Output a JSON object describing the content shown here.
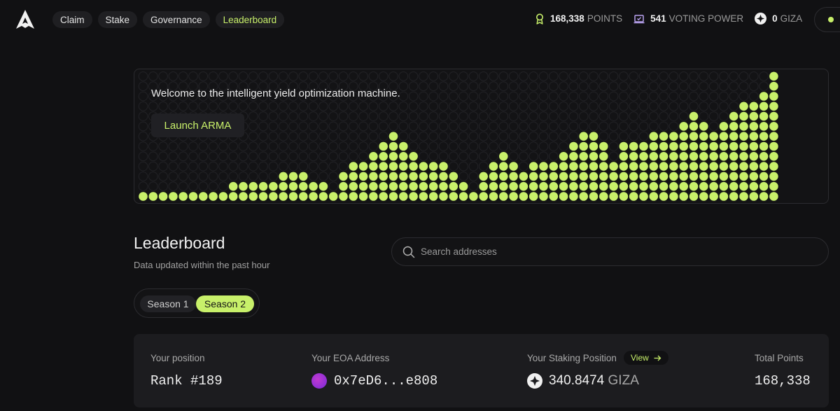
{
  "nav": {
    "items": [
      {
        "label": "Claim",
        "active": false
      },
      {
        "label": "Stake",
        "active": false
      },
      {
        "label": "Governance",
        "active": false
      },
      {
        "label": "Leaderboard",
        "active": true
      }
    ]
  },
  "stats": {
    "points_value": "168,338",
    "points_label": "POINTS",
    "voting_value": "541",
    "voting_label": "VOTING POWER",
    "giza_value": "0",
    "giza_label": "GIZA"
  },
  "hero": {
    "welcome": "Welcome to the intelligent yield optimization machine.",
    "launch_label": "Launch ARMA",
    "column_heights": [
      1,
      1,
      1,
      1,
      1,
      1,
      1,
      1,
      1,
      2,
      2,
      2,
      2,
      2,
      3,
      3,
      3,
      2,
      2,
      1,
      3,
      4,
      4,
      5,
      6,
      7,
      6,
      5,
      4,
      4,
      4,
      3,
      2,
      1,
      3,
      4,
      5,
      4,
      3,
      4,
      4,
      4,
      5,
      6,
      7,
      7,
      6,
      4,
      6,
      6,
      6,
      7,
      7,
      7,
      8,
      9,
      8,
      7,
      8,
      9,
      10,
      10,
      11,
      13
    ]
  },
  "colors": {
    "accent": "#c8f06a",
    "background": "#111113",
    "card": "#1c1c1f"
  },
  "leaderboard": {
    "title": "Leaderboard",
    "subtitle": "Data updated within the past hour",
    "search_placeholder": "Search addresses",
    "seasons": [
      "Season 1",
      "Season 2"
    ],
    "selected_season": "Season 2"
  },
  "position_card": {
    "position_label": "Your position",
    "rank": "Rank #189",
    "eoa_label": "Your EOA Address",
    "eoa_address": "0x7eD6...e808",
    "staking_label": "Your Staking Position",
    "view_label": "View",
    "staking_value": "340.8474",
    "staking_unit": "GIZA",
    "total_label": "Total Points",
    "total_value": "168,338"
  }
}
